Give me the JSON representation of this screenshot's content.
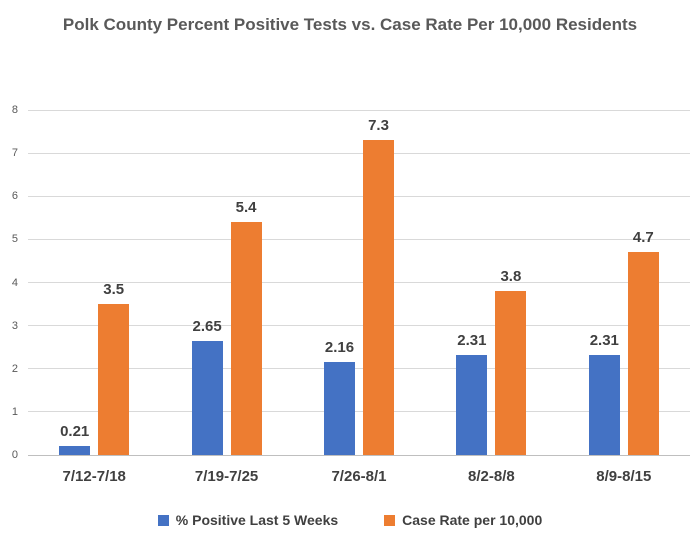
{
  "chart_data": {
    "type": "bar",
    "title": "Polk County Percent Positive Tests vs. Case Rate Per 10,000 Residents",
    "categories": [
      "7/12-7/18",
      "7/19-7/25",
      "7/26-8/1",
      "8/2-8/8",
      "8/9-8/15"
    ],
    "series": [
      {
        "name": "% Positive Last 5 Weeks",
        "color": "#4472C4",
        "values": [
          0.21,
          2.65,
          2.16,
          2.31,
          2.31
        ]
      },
      {
        "name": "Case Rate per 10,000",
        "color": "#ED7D31",
        "values": [
          3.5,
          5.4,
          7.3,
          3.8,
          4.7
        ]
      }
    ],
    "ylim": [
      0,
      8
    ],
    "ytick_step": 1,
    "yticks": [
      "0",
      "1",
      "2",
      "3",
      "4",
      "5",
      "6",
      "7",
      "8"
    ],
    "grid": true,
    "legend_position": "bottom"
  },
  "colors": {
    "background": "#FFFFFF",
    "title": "#595959",
    "axis_label": "#595959",
    "data_label": "#404040",
    "category_label": "#404040",
    "legend_label": "#404040",
    "gridline": "#D9D9D9",
    "axis_line": "#BFBFBF"
  }
}
